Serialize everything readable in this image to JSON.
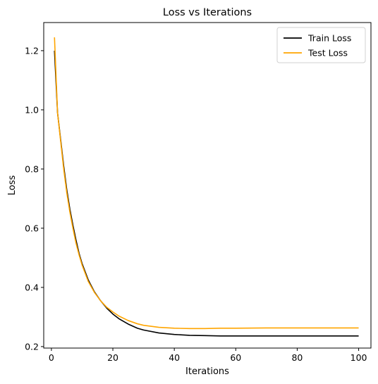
{
  "chart_data": {
    "type": "line",
    "title": "Loss vs Iterations",
    "xlabel": "Iterations",
    "ylabel": "Loss",
    "xlim": [
      -2.5,
      104
    ],
    "ylim": [
      0.195,
      1.295
    ],
    "xticks": [
      0,
      20,
      40,
      60,
      80,
      100
    ],
    "yticks": [
      0.2,
      0.4,
      0.6,
      0.8,
      1.0,
      1.2
    ],
    "ytick_labels": [
      "0.2",
      "0.4",
      "0.6",
      "0.8",
      "1.0",
      "1.2"
    ],
    "grid": false,
    "legend_position": "top-right",
    "series": [
      {
        "name": "Train Loss",
        "color": "#000000",
        "x": [
          1,
          2,
          3,
          4,
          5,
          6,
          7,
          8,
          9,
          10,
          12,
          14,
          16,
          18,
          20,
          22,
          25,
          28,
          30,
          35,
          40,
          45,
          50,
          55,
          60,
          70,
          80,
          90,
          100
        ],
        "y": [
          1.2,
          0.99,
          0.9,
          0.81,
          0.73,
          0.665,
          0.61,
          0.56,
          0.515,
          0.48,
          0.425,
          0.385,
          0.355,
          0.33,
          0.31,
          0.294,
          0.276,
          0.262,
          0.256,
          0.246,
          0.241,
          0.238,
          0.237,
          0.236,
          0.236,
          0.236,
          0.236,
          0.236,
          0.236
        ]
      },
      {
        "name": "Test Loss",
        "color": "#FFA500",
        "x": [
          1,
          2,
          3,
          4,
          5,
          6,
          7,
          8,
          9,
          10,
          12,
          14,
          16,
          18,
          20,
          22,
          25,
          28,
          30,
          35,
          40,
          45,
          50,
          55,
          60,
          70,
          80,
          90,
          100
        ],
        "y": [
          1.245,
          0.99,
          0.895,
          0.8,
          0.72,
          0.655,
          0.6,
          0.55,
          0.51,
          0.475,
          0.42,
          0.383,
          0.355,
          0.333,
          0.317,
          0.303,
          0.288,
          0.277,
          0.272,
          0.265,
          0.262,
          0.261,
          0.261,
          0.262,
          0.262,
          0.263,
          0.263,
          0.263,
          0.263
        ]
      }
    ]
  }
}
